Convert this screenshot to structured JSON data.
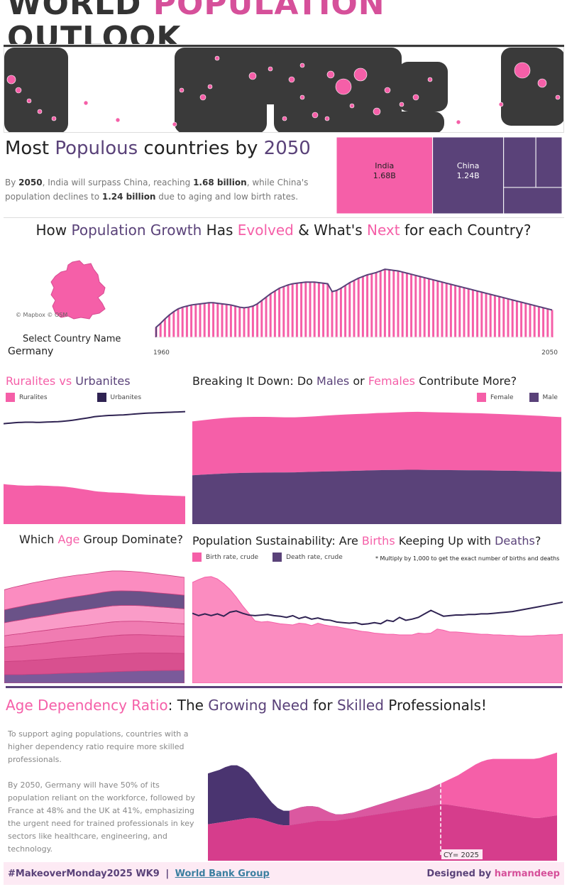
{
  "header": {
    "title_part1": "WORLD ",
    "title_part2": "POPULATION",
    "title_part3": "OUTLOOK"
  },
  "colors": {
    "pink": "#f55fa8",
    "light_pink": "#fb8cc0",
    "purple": "#5a4279",
    "dark_purple": "#2f2352",
    "map_land": "#3a3a3a"
  },
  "populous": {
    "title_w1": "Most ",
    "title_w2": "Populous",
    "title_w3": " countries by ",
    "title_w4": "2050",
    "desc_1": "By ",
    "desc_2050": "2050",
    "desc_2": ", India will surpass China, reaching ",
    "desc_india": "1.68 billion",
    "desc_3": ", while China's population declines to ",
    "desc_china": "1.24 billion",
    "desc_4": " due to aging and low birth rates."
  },
  "growth": {
    "title_w1": "How ",
    "title_w2": "Population Growth",
    "title_w3": " Has ",
    "title_w4": "Evolved",
    "title_w5": " & What's ",
    "title_w6": "Next",
    "title_w7": " for each Country?",
    "map_credit": "© Mapbox © OSM",
    "select_label": "Select Country Name",
    "selected_country": "Germany",
    "year_start": "1960",
    "year_end": "2050"
  },
  "rural": {
    "title_w1": "Ruralites",
    "title_w2": " vs ",
    "title_w3": "Urbanites",
    "legend_rural": "Ruralites",
    "legend_urban": "Urbanites"
  },
  "gender": {
    "title_w1": "Breaking It Down: Do ",
    "title_w2": "Males",
    "title_w3": " or ",
    "title_w4": "Females",
    "title_w5": " Contribute More?",
    "legend_female": "Female",
    "legend_male": "Male"
  },
  "age": {
    "title_w1": "Which ",
    "title_w2": "Age",
    "title_w3": " Group Dominate?"
  },
  "sustain": {
    "title_w1": "Population Sustainability: Are ",
    "title_w2": "Births",
    "title_w3": " Keeping Up with ",
    "title_w4": "Deaths",
    "title_w5": "?",
    "legend_birth": "Birth rate, crude",
    "legend_death": "Death rate, crude",
    "note": "* Multiply by 1,000 to get the exact number of births and deaths"
  },
  "dependency": {
    "title_w1": "Age Dependency Ratio",
    "title_w2": ": The ",
    "title_w3": "Growing Need",
    "title_w4": " for ",
    "title_w5": "Skilled",
    "title_w6": " Professionals!",
    "para1": "To support aging populations, countries with a higher dependency ratio require more skilled professionals.",
    "para2": "By 2050, Germany will have 50% of its population reliant on the workforce, followed by France at 48% and the UK at 41%, emphasizing the urgent need for trained professionals in key sectors like healthcare, engineering, and technology.",
    "cy_label": "CY= 2025"
  },
  "footer": {
    "tag": "#MakeoverMonday2025 WK9",
    "sep": "|",
    "link": "World Bank Group",
    "designed_by": "Designed by ",
    "author": "harmandeep"
  },
  "chart_data": [
    {
      "type": "treemap",
      "id": "populous-treemap",
      "categories": [
        "India",
        "China",
        "",
        "",
        ""
      ],
      "labels": [
        "1.68B",
        "1.24B",
        "",
        "",
        ""
      ],
      "values": [
        1.68,
        1.24,
        0.37,
        0.3,
        0.35
      ],
      "colors": [
        "#f55fa8",
        "#5a4279",
        "#5a4279",
        "#5a4279",
        "#5a4279"
      ]
    },
    {
      "type": "bar",
      "id": "germany-population",
      "x_start": 1960,
      "x_end": 2050,
      "xlabels": [
        "1960",
        "2050"
      ],
      "values": [
        72.8,
        73.5,
        74.3,
        75.0,
        75.6,
        76.1,
        76.4,
        76.6,
        76.8,
        76.9,
        77.0,
        77.1,
        77.2,
        77.2,
        77.1,
        77.0,
        76.9,
        76.8,
        76.6,
        76.4,
        76.3,
        76.4,
        76.6,
        77.0,
        77.6,
        78.2,
        78.8,
        79.3,
        79.8,
        80.1,
        80.4,
        80.6,
        80.7,
        80.8,
        80.9,
        80.9,
        80.9,
        80.8,
        80.7,
        80.6,
        79.2,
        79.4,
        79.8,
        80.3,
        80.8,
        81.2,
        81.6,
        81.9,
        82.2,
        82.4,
        82.6,
        82.9,
        83.2,
        83.1,
        83.0,
        82.9,
        82.7,
        82.5,
        82.3,
        82.1,
        81.9,
        81.7,
        81.5,
        81.3,
        81.1,
        80.9,
        80.7,
        80.5,
        80.3,
        80.1,
        79.9,
        79.7,
        79.5,
        79.3,
        79.1,
        78.9,
        78.7,
        78.5,
        78.3,
        78.1,
        77.9,
        77.7,
        77.5,
        77.3,
        77.1,
        76.9,
        76.7,
        76.5,
        76.3,
        76.1,
        75.9
      ],
      "ylim": [
        71,
        85
      ]
    },
    {
      "type": "area",
      "id": "rural-urban",
      "series": [
        {
          "name": "Ruralites",
          "values": [
            28.5,
            28.2,
            28.0,
            27.8,
            27.6,
            27.5,
            27.4,
            27.4,
            27.4,
            27.5,
            27.5,
            27.4,
            27.3,
            27.2,
            27.1,
            27.0,
            26.8,
            26.6,
            26.3,
            26.0,
            25.6,
            25.2,
            24.8,
            24.4,
            24.0,
            23.5,
            23.2,
            23.0,
            22.8,
            22.6,
            22.5,
            22.4,
            22.3,
            22.2,
            22.0,
            21.8,
            21.6,
            21.4,
            21.2,
            21.0,
            20.9,
            20.8,
            20.7,
            20.6,
            20.5,
            20.4,
            20.3,
            20.2,
            20.1,
            20.0,
            19.9
          ]
        },
        {
          "name": "Urbanites",
          "values": [
            71.5,
            71.8,
            72.0,
            72.2,
            72.4,
            72.5,
            72.6,
            72.6,
            72.6,
            72.5,
            72.5,
            72.6,
            72.7,
            72.8,
            72.9,
            73.0,
            73.2,
            73.4,
            73.7,
            74.0,
            74.4,
            74.8,
            75.2,
            75.6,
            76.0,
            76.5,
            76.8,
            77.0,
            77.2,
            77.4,
            77.5,
            77.6,
            77.7,
            77.8,
            78.0,
            78.2,
            78.4,
            78.6,
            78.8,
            79.0,
            79.1,
            79.2,
            79.3,
            79.4,
            79.5,
            79.6,
            79.7,
            79.8,
            79.9,
            80.0,
            80.1
          ]
        }
      ],
      "ylim": [
        0,
        85
      ]
    },
    {
      "type": "area",
      "id": "gender-breakdown",
      "series": [
        {
          "name": "Male",
          "values": [
            34.8,
            35.2,
            35.6,
            36.0,
            36.3,
            36.5,
            36.6,
            36.7,
            36.8,
            36.8,
            36.9,
            37.1,
            37.3,
            37.5,
            37.6,
            37.8,
            38.0,
            38.2,
            38.4,
            38.5,
            38.6,
            38.7,
            38.7,
            38.6,
            38.5,
            38.5,
            38.4,
            38.3,
            38.3,
            38.2,
            38.1,
            38.0,
            37.9,
            37.7,
            37.6,
            37.4,
            37.3
          ]
        },
        {
          "name": "Female",
          "values": [
            38.4,
            38.8,
            39.2,
            39.5,
            39.7,
            39.8,
            39.8,
            39.7,
            39.5,
            39.3,
            39.2,
            39.3,
            39.5,
            39.8,
            40.1,
            40.3,
            40.4,
            40.5,
            40.7,
            40.8,
            41.0,
            41.2,
            41.3,
            41.2,
            41.1,
            41.0,
            40.9,
            40.8,
            40.7,
            40.5,
            40.3,
            40.1,
            39.9,
            39.7,
            39.5,
            39.2,
            38.9
          ]
        }
      ],
      "ylim": [
        0,
        85
      ]
    },
    {
      "type": "area",
      "id": "age-groups",
      "series": [
        {
          "name": "",
          "values": [
            6,
            6,
            6,
            6.2,
            6.3,
            6.5,
            6.8,
            7,
            7.2,
            7.3,
            7.5,
            7.8,
            8,
            8.2,
            8.4,
            8.6,
            8.7,
            8.8,
            8.9,
            9,
            9.1
          ]
        },
        {
          "name": "",
          "values": [
            9,
            9.3,
            9.5,
            9.8,
            10,
            10.2,
            10.5,
            10.8,
            11,
            11.3,
            11.6,
            11.8,
            12,
            12.2,
            12.3,
            12.4,
            12.3,
            12.1,
            12,
            11.8,
            11.6
          ]
        },
        {
          "name": "",
          "values": [
            10,
            10.3,
            10.6,
            10.9,
            11.2,
            11.5,
            11.7,
            11.9,
            12.1,
            12.3,
            12.5,
            12.8,
            13,
            13.1,
            13,
            12.8,
            12.6,
            12.4,
            12.2,
            12,
            11.8
          ]
        },
        {
          "name": "",
          "values": [
            8,
            8.3,
            8.5,
            8.7,
            8.8,
            8.9,
            9,
            9.1,
            9.2,
            9.3,
            9.4,
            9.5,
            9.6,
            9.5,
            9.4,
            9.3,
            9.2,
            9.1,
            9,
            8.9,
            8.8
          ]
        },
        {
          "name": "",
          "values": [
            9,
            9.3,
            9.6,
            9.8,
            10,
            10.2,
            10.4,
            10.6,
            10.8,
            10.9,
            11,
            11.1,
            11.2,
            11.1,
            11,
            10.9,
            10.8,
            10.7,
            10.6,
            10.5,
            10.4
          ]
        },
        {
          "name": "",
          "values": [
            9,
            9.2,
            9.4,
            9.5,
            9.6,
            9.7,
            9.8,
            9.9,
            10,
            10.1,
            10.2,
            10.3,
            10.3,
            10.2,
            10.1,
            10,
            9.9,
            9.8,
            9.7,
            9.6,
            9.5
          ]
        },
        {
          "name": "",
          "values": [
            14,
            14.3,
            14.5,
            14.7,
            14.9,
            15,
            15,
            14.9,
            14.8,
            14.6,
            14.4,
            14.2,
            14,
            13.8,
            13.6,
            13.4,
            13.2,
            13,
            12.8,
            12.6,
            12.4
          ]
        }
      ],
      "ylim": [
        0,
        85
      ]
    },
    {
      "type": "area",
      "id": "birth-death",
      "series": [
        {
          "name": "Birth rate, crude",
          "values": [
            17.3,
            17.8,
            18.2,
            18.3,
            17.9,
            17.1,
            16.1,
            14.8,
            13.3,
            12.0,
            10.7,
            10.5,
            10.6,
            10.4,
            10.2,
            10.1,
            10.0,
            10.3,
            10.2,
            9.9,
            10.3,
            10.0,
            9.8,
            9.7,
            9.5,
            9.3,
            9.1,
            8.9,
            8.8,
            8.6,
            8.5,
            8.4,
            8.4,
            8.3,
            8.3,
            8.3,
            8.6,
            8.5,
            8.6,
            9.3,
            9.1,
            8.8,
            8.8,
            8.7,
            8.6,
            8.5,
            8.4,
            8.4,
            8.3,
            8.3,
            8.2,
            8.2,
            8.1,
            8.1,
            8.1,
            8.2,
            8.2,
            8.3,
            8.3,
            8.4
          ]
        },
        {
          "name": "Death rate, crude",
          "values": [
            12.0,
            11.6,
            11.9,
            11.6,
            11.9,
            11.5,
            12.2,
            12.4,
            12.0,
            11.7,
            11.6,
            11.7,
            11.8,
            11.6,
            11.5,
            11.3,
            11.6,
            11.1,
            11.4,
            11.0,
            11.2,
            10.9,
            10.8,
            10.5,
            10.4,
            10.3,
            10.4,
            10.1,
            10.2,
            10.4,
            10.2,
            10.8,
            10.6,
            11.3,
            10.8,
            11.0,
            11.3,
            11.9,
            12.5,
            12.0,
            11.5,
            11.6,
            11.7,
            11.7,
            11.8,
            11.8,
            11.9,
            11.9,
            12.0,
            12.1,
            12.2,
            12.3,
            12.5,
            12.7,
            12.9,
            13.1,
            13.3,
            13.5,
            13.7,
            13.9
          ]
        }
      ],
      "ylim": [
        0,
        20
      ]
    },
    {
      "type": "area",
      "id": "dependency-ratio",
      "series": [
        {
          "name": "",
          "values": [
            20,
            20.5,
            21,
            21.5,
            22,
            22.5,
            23,
            23.5,
            23.5,
            23,
            22,
            21,
            20,
            19.5,
            19.5,
            20,
            20.5,
            21,
            21.5,
            22,
            22,
            22,
            22,
            22.5,
            23,
            23.5,
            24,
            24.5,
            25,
            25.5,
            26,
            26.5,
            27,
            27.5,
            28,
            28.5,
            29,
            29.5,
            30,
            30.5,
            31,
            31,
            30.5,
            30,
            29.5,
            29,
            28.5,
            28,
            27.5,
            27,
            26.5,
            26,
            25.5,
            25,
            24.5,
            24,
            23.5,
            23.5,
            24,
            24.5,
            25
          ]
        },
        {
          "name": "",
          "values": [
            28,
            28.5,
            29,
            30,
            30.5,
            30,
            28,
            25,
            21,
            17,
            14,
            11,
            9,
            8,
            8,
            8.5,
            9,
            9,
            8.5,
            7.5,
            6,
            4.5,
            3.5,
            3,
            3,
            3,
            3.5,
            4,
            4.5,
            5,
            5.5,
            6,
            6.5,
            7,
            7.5,
            8,
            8.5,
            9,
            9.5,
            10.5,
            11.5,
            13,
            15,
            17,
            19.5,
            22,
            24.5,
            26.5,
            28,
            29,
            29.5,
            30,
            30.5,
            31,
            31.5,
            32,
            32.5,
            33,
            33.5,
            34,
            34.5
          ]
        }
      ],
      "cy_index": 40,
      "ylim": [
        0,
        75
      ]
    }
  ]
}
